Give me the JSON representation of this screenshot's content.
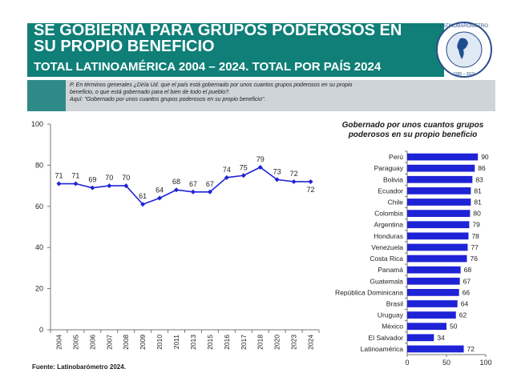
{
  "header": {
    "title_line1": "SE GOBIERNA PARA GRUPOS PODEROSOS EN",
    "title_line2": "SU PROPIO BENEFICIO",
    "subtitle": "TOTAL LATINOAMÉRICA 2004 – 2024. TOTAL POR PAÍS 2024",
    "logo_text": "LATINOBARÓMETRO",
    "logo_years": "1995 – 2024"
  },
  "question": {
    "line1": "P. En términos generales ¿Diría Ud. que el país está gobernado por unos cuantos grupos poderosos en su propio",
    "line2": "beneficio, o que está gobernado para el bien de todo el pueblo?.",
    "line3": "Aquí: \"Gobernado por unos cuantos grupos poderosos en su propio beneficio\"."
  },
  "source": "Fuente: Latinobarómetro 2024.",
  "colors": {
    "band": "#0f7f78",
    "series": "#1f23d6",
    "question_bg": "#cfd4d8"
  },
  "chart_data": [
    {
      "type": "line",
      "x": [
        "2004",
        "2005",
        "2006",
        "2007",
        "2008",
        "2009",
        "2010",
        "2011",
        "2013",
        "2015",
        "2016",
        "2017",
        "2018",
        "2020",
        "2023",
        "2024"
      ],
      "series": [
        {
          "values": [
            71,
            71,
            69,
            70,
            70,
            61,
            64,
            68,
            67,
            67,
            74,
            75,
            79,
            73,
            72,
            72
          ]
        }
      ],
      "ylim": [
        0,
        100
      ],
      "yticks": [
        0,
        20,
        40,
        60,
        80,
        100
      ],
      "markers": "diamond",
      "data_labels": true
    },
    {
      "type": "bar",
      "orientation": "horizontal",
      "title_line1": "Gobernado por unos cuantos grupos",
      "title_line2": "poderosos en su propio beneficio",
      "categories": [
        "Perú",
        "Paraguay",
        "Bolivia",
        "Ecuador",
        "Chile",
        "Colombia",
        "Argentina",
        "Honduras",
        "Venezuela",
        "Costa Rica",
        "Panamá",
        "Guatemala",
        "República Dominicana",
        "Brasil",
        "Uruguay",
        "México",
        "El Salvador",
        "Latinoamérica"
      ],
      "values": [
        90,
        86,
        83,
        81,
        81,
        80,
        79,
        78,
        77,
        76,
        68,
        67,
        66,
        64,
        62,
        50,
        34,
        72
      ],
      "xlim": [
        0,
        100
      ],
      "xticks": [
        0,
        50,
        100
      ]
    }
  ]
}
